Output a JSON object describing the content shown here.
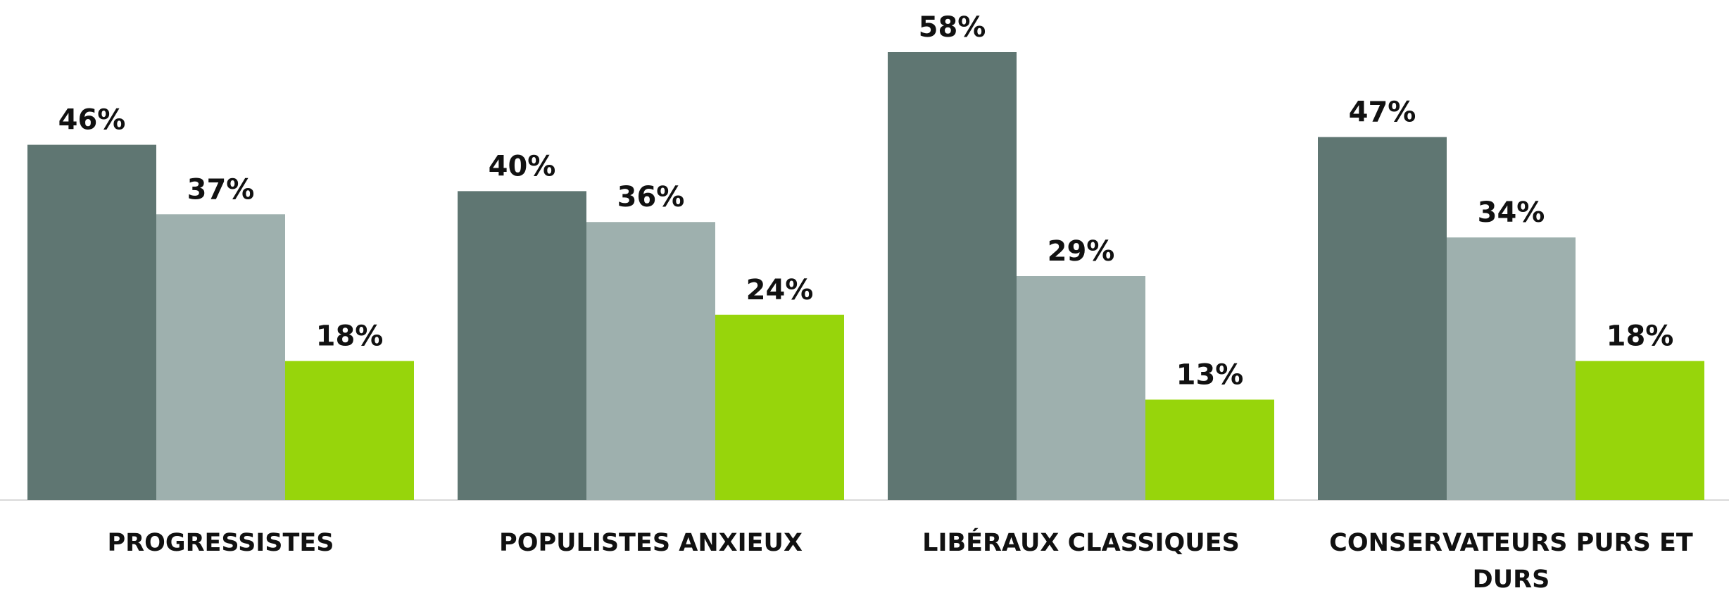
{
  "chart_data": {
    "type": "bar",
    "categories": [
      "PROGRESSISTES",
      "POPULISTES ANXIEUX",
      "LIBÉRAUX CLASSIQUES",
      "CONSERVATEURS PURS ET DURS"
    ],
    "series": [
      {
        "color": "#5f7672",
        "values": [
          46,
          40,
          58,
          47
        ],
        "value_labels": [
          "46%",
          "40%",
          "58%",
          "47%"
        ]
      },
      {
        "color": "#9eb0ae",
        "values": [
          37,
          36,
          29,
          34
        ],
        "value_labels": [
          "37%",
          "36%",
          "29%",
          "34%"
        ]
      },
      {
        "color": "#97d50b",
        "values": [
          18,
          24,
          13,
          18
        ],
        "value_labels": [
          "18%",
          "24%",
          "13%",
          "18%"
        ]
      }
    ]
  }
}
